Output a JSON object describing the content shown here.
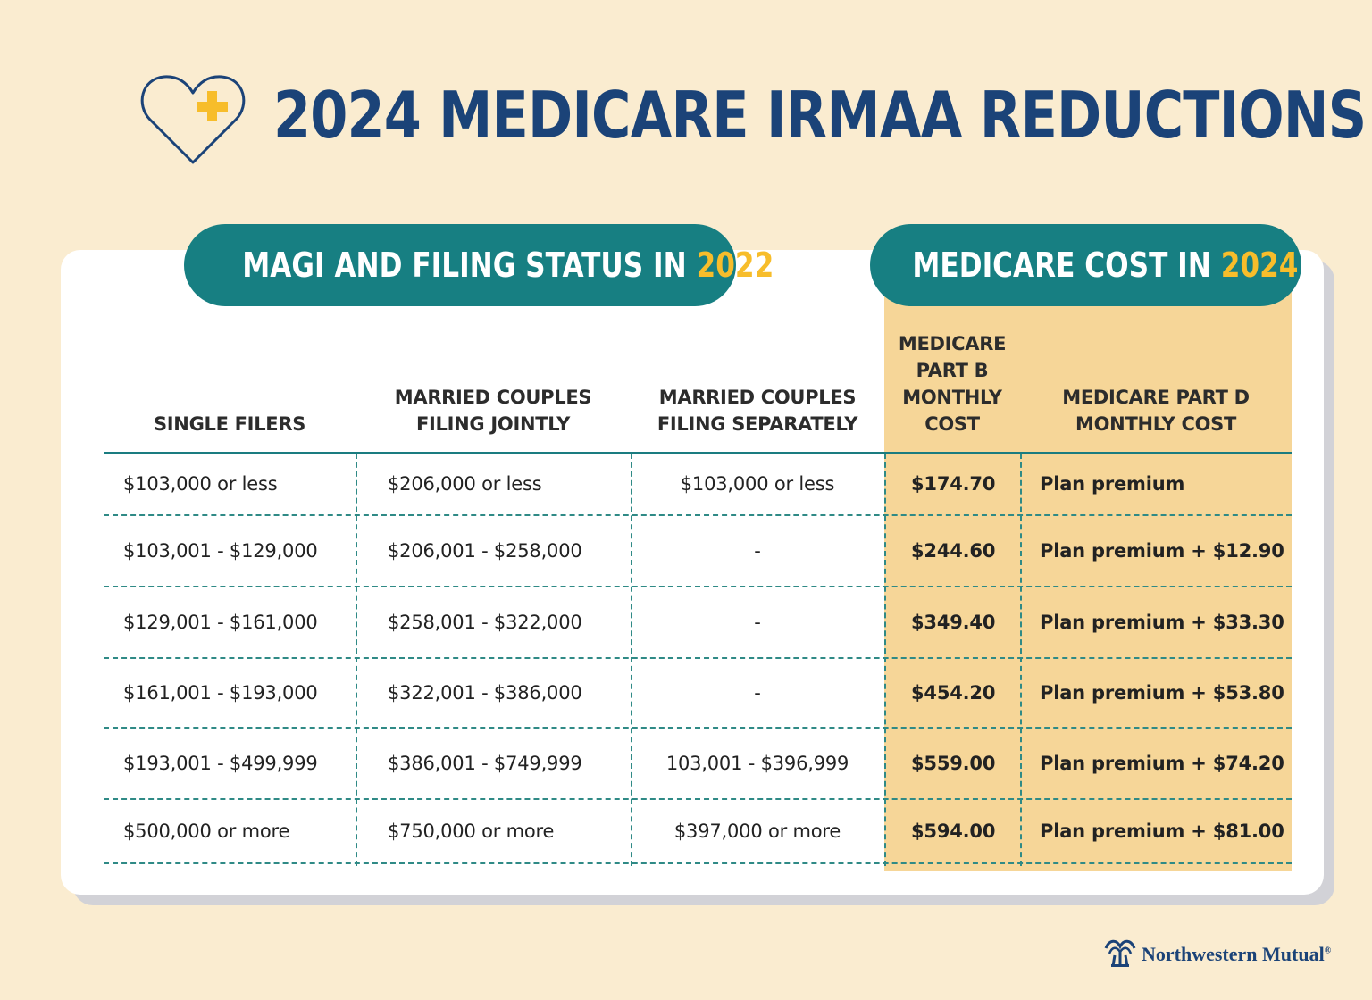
{
  "title": "2024 MEDICARE IRMAA REDUCTIONS",
  "left_pill": {
    "text": "MAGI AND FILING STATUS IN ",
    "year": "2022"
  },
  "right_pill": {
    "text": "MEDICARE COST IN ",
    "year": "2024"
  },
  "columns": [
    {
      "lines": [
        "SINGLE FILERS"
      ]
    },
    {
      "lines": [
        "MARRIED COUPLES",
        "FILING JOINTLY"
      ]
    },
    {
      "lines": [
        "MARRIED COUPLES",
        "FILING SEPARATELY"
      ]
    },
    {
      "lines": [
        "MEDICARE",
        "PART B",
        "MONTHLY",
        "COST"
      ]
    },
    {
      "lines": [
        "MEDICARE PART D",
        "MONTHLY COST"
      ]
    }
  ],
  "rows": [
    [
      "$103,000 or less",
      "$206,000 or less",
      "$103,000 or less",
      "$174.70",
      "Plan premium"
    ],
    [
      "$103,001 - $129,000",
      "$206,001 - $258,000",
      "-",
      "$244.60",
      "Plan premium + $12.90"
    ],
    [
      "$129,001 - $161,000",
      "$258,001 - $322,000",
      "-",
      "$349.40",
      "Plan premium + $33.30"
    ],
    [
      "$161,001 - $193,000",
      "$322,001 - $386,000",
      "-",
      "$454.20",
      "Plan premium + $53.80"
    ],
    [
      "$193,001 - $499,999",
      "$386,001 - $749,999",
      "103,001 - $396,999",
      "$559.00",
      "Plan premium + $74.20"
    ],
    [
      "$500,000 or more",
      "$750,000 or more",
      "$397,000 or more",
      "$594.00",
      "Plan premium + $81.00"
    ]
  ],
  "logo": {
    "text": "Northwestern Mutual",
    "mark": "®"
  },
  "colors": {
    "navy": "#1b4378",
    "teal": "#177f82",
    "gold": "#f7bd2b",
    "cost_bg": "#f6d698",
    "page_bg": "#faecd0"
  },
  "icons": {
    "header": "heart-plus-icon",
    "logo": "fountain-icon"
  }
}
